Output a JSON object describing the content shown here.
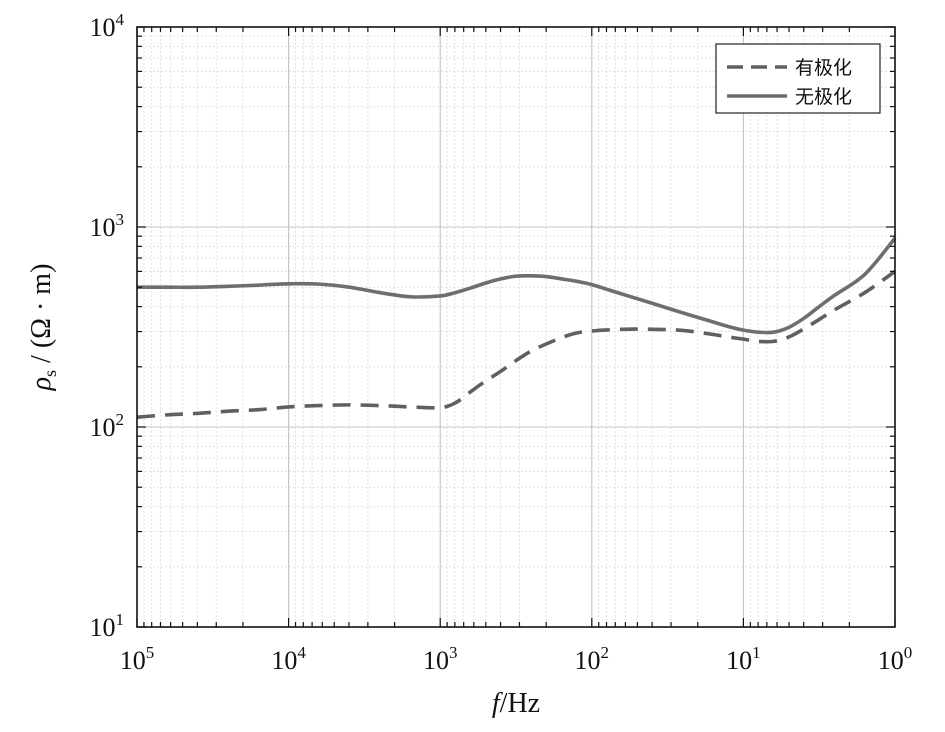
{
  "chart_data": {
    "type": "line",
    "x_scale": "log",
    "y_scale": "log",
    "x_reversed": true,
    "x_ticks": [
      {
        "base": "10",
        "exp": "5",
        "value": 100000
      },
      {
        "base": "10",
        "exp": "4",
        "value": 10000
      },
      {
        "base": "10",
        "exp": "3",
        "value": 1000
      },
      {
        "base": "10",
        "exp": "2",
        "value": 100
      },
      {
        "base": "10",
        "exp": "1",
        "value": 10
      },
      {
        "base": "10",
        "exp": "0",
        "value": 1
      }
    ],
    "y_ticks": [
      {
        "base": "10",
        "exp": "4",
        "value": 10000
      },
      {
        "base": "10",
        "exp": "3",
        "value": 1000
      },
      {
        "base": "10",
        "exp": "2",
        "value": 100
      },
      {
        "base": "10",
        "exp": "1",
        "value": 10
      }
    ],
    "xlim": [
      100000,
      1
    ],
    "ylim": [
      10,
      10000
    ],
    "xlabel": {
      "italic": "f",
      "rest": "/Hz"
    },
    "ylabel": {
      "rho": "ρ",
      "sub": "s",
      "rest": " / (Ω · m)"
    },
    "grid": true,
    "legend_position": "top-right",
    "series": [
      {
        "name": "有极化",
        "style": "dashed",
        "color": "#606060",
        "x": [
          100000,
          63100,
          39800,
          25100,
          15800,
          10000,
          6310,
          3980,
          2510,
          1580,
          1000,
          794,
          631,
          501,
          398,
          316,
          251,
          200,
          158,
          126,
          100,
          63.1,
          39.8,
          25.1,
          15.8,
          12.6,
          10,
          7.94,
          6.31,
          5.01,
          3.98,
          3.16,
          2.51,
          1.58,
          1
        ],
        "y": [
          112,
          115,
          117,
          120,
          122,
          126,
          128,
          129,
          128,
          126,
          125,
          132,
          150,
          170,
          190,
          215,
          240,
          260,
          280,
          295,
          302,
          308,
          308,
          304,
          290,
          282,
          275,
          268,
          268,
          282,
          310,
          345,
          385,
          470,
          600
        ]
      },
      {
        "name": "无极化",
        "style": "solid",
        "color": "#6e6e6e",
        "x": [
          100000,
          63100,
          39800,
          25100,
          15800,
          10000,
          6310,
          3980,
          2510,
          1580,
          1000,
          794,
          631,
          501,
          398,
          316,
          251,
          200,
          158,
          126,
          100,
          63.1,
          39.8,
          25.1,
          15.8,
          12.6,
          10,
          7.94,
          6.31,
          5.01,
          3.98,
          3.16,
          2.51,
          1.58,
          1
        ],
        "y": [
          500,
          500,
          500,
          505,
          512,
          520,
          518,
          500,
          470,
          448,
          452,
          470,
          495,
          525,
          550,
          568,
          570,
          565,
          550,
          535,
          515,
          462,
          415,
          372,
          335,
          318,
          305,
          298,
          298,
          315,
          350,
          400,
          455,
          580,
          880
        ]
      }
    ]
  }
}
